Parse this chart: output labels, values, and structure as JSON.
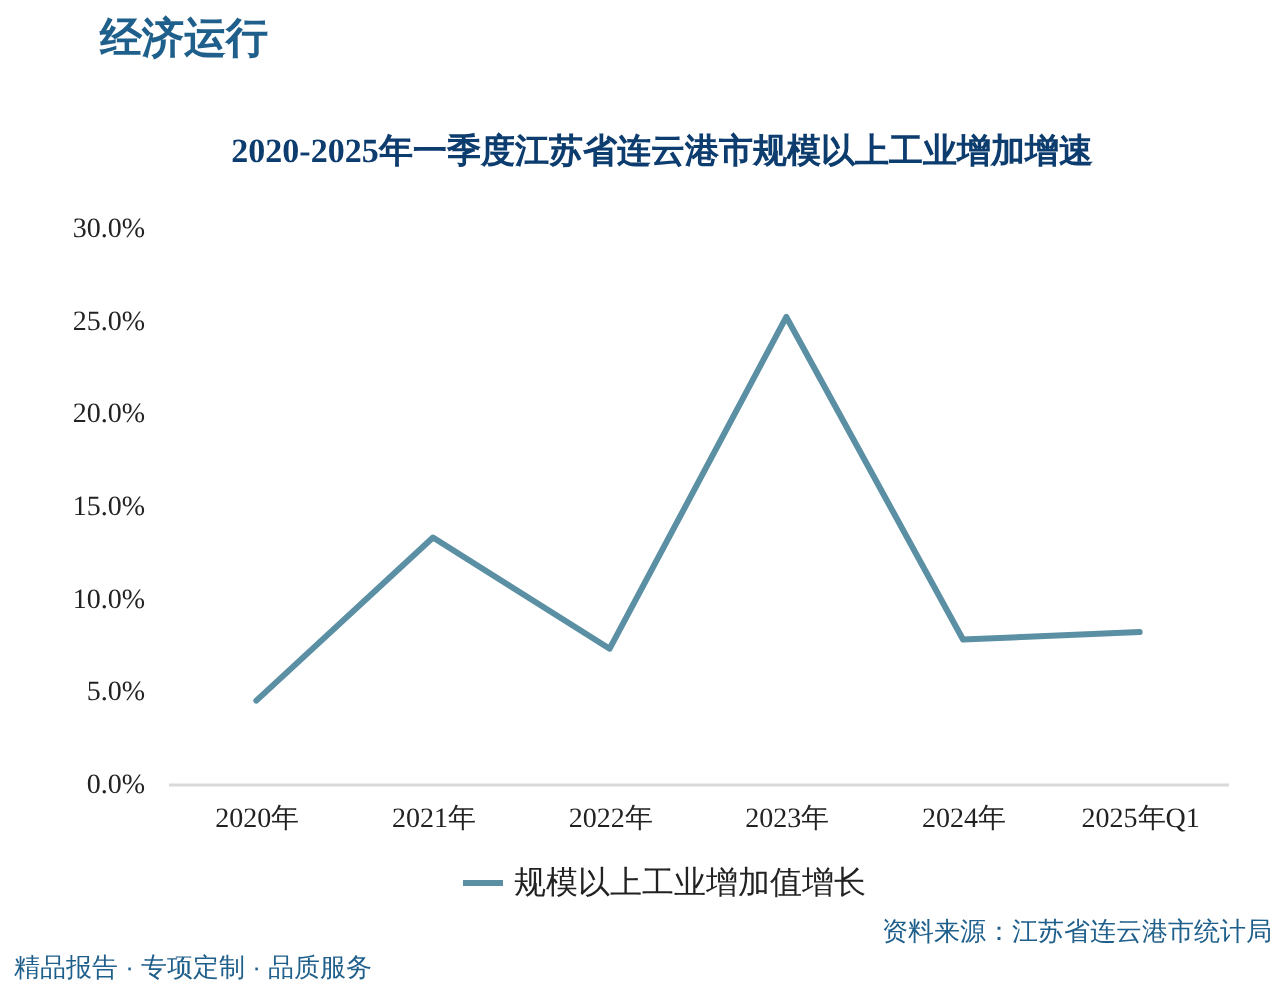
{
  "chart_data": {
    "type": "line",
    "title": "2020-2025年一季度江苏省连云港市规模以上工业增加增速",
    "categories": [
      "2020年",
      "2021年",
      "2022年",
      "2023年",
      "2024年",
      "2025年Q1"
    ],
    "series": [
      {
        "name": "规模以上工业增加值增长",
        "color": "#5b8fa4",
        "values": [
          4.5,
          13.3,
          7.3,
          25.2,
          7.8,
          8.2
        ]
      }
    ],
    "ylim": [
      0,
      30
    ],
    "yticks": [
      {
        "value": 0,
        "label": "0.0%"
      },
      {
        "value": 5,
        "label": "5.0%"
      },
      {
        "value": 10,
        "label": "10.0%"
      },
      {
        "value": 15,
        "label": "15.0%"
      },
      {
        "value": 20,
        "label": "20.0%"
      },
      {
        "value": 25,
        "label": "25.0%"
      },
      {
        "value": 30,
        "label": "30.0%"
      }
    ],
    "grid": false,
    "legend": "bottom",
    "marker": "none",
    "line_style": "solid",
    "annotations": [
      "经济运行",
      "精品报告 · 专项定制 · 品质服务",
      "资料来源：江苏省连云港市统计局"
    ]
  }
}
